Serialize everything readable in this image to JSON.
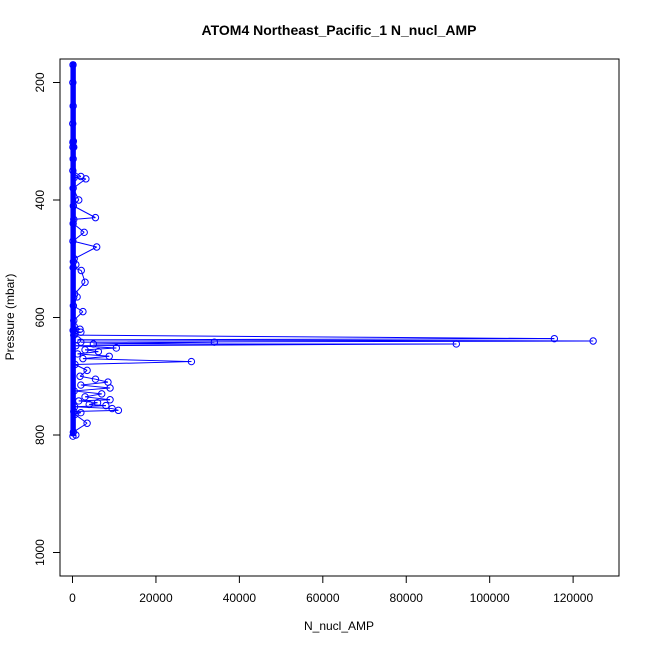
{
  "chart_data": {
    "type": "line",
    "title": "ATOM4 Northeast_Pacific_1 N_nucl_AMP",
    "xlabel": "N_nucl_AMP",
    "ylabel": "Pressure (mbar)",
    "xlim": [
      -3000,
      131000
    ],
    "ylim": [
      1040,
      160
    ],
    "y_inverted": true,
    "grid": false,
    "legend": "none",
    "xticks": [
      0,
      20000,
      40000,
      60000,
      80000,
      100000,
      120000
    ],
    "xtick_labels": [
      "0",
      "20000",
      "40000",
      "60000",
      "80000",
      "100000",
      "120000"
    ],
    "yticks": [
      200,
      400,
      600,
      800,
      1000
    ],
    "ytick_labels": [
      "200",
      "400",
      "600",
      "800",
      "1000"
    ],
    "series_color": "#0000ff",
    "series": [
      {
        "x": [
          120,
          80,
          150,
          60,
          200,
          100,
          90,
          300,
          150,
          80,
          2000,
          400,
          3200,
          150,
          1500,
          200,
          5500,
          300,
          150,
          2800,
          100,
          5800,
          400,
          200,
          800,
          150,
          2100,
          3000,
          500,
          1100,
          200,
          2500,
          300,
          400,
          1800,
          150,
          2000,
          500,
          300,
          115500,
          1200,
          124800,
          2000,
          34000,
          5000,
          92000,
          800,
          10500,
          3000,
          6200,
          1200,
          8800,
          2500,
          28500,
          600,
          3500,
          1800,
          5500,
          8500,
          2000,
          9000,
          400,
          7000,
          3000,
          9000,
          1500,
          6000,
          4000,
          8000,
          500,
          9500,
          11000,
          300,
          2000,
          600,
          3500,
          200,
          800,
          100
        ],
        "y": [
          170,
          200,
          240,
          270,
          300,
          302,
          310,
          310,
          330,
          350,
          360,
          362,
          364,
          380,
          400,
          410,
          430,
          433,
          440,
          455,
          470,
          480,
          500,
          505,
          510,
          515,
          520,
          540,
          560,
          565,
          580,
          590,
          605,
          615,
          620,
          622,
          625,
          628,
          630,
          636,
          638,
          640,
          642,
          642,
          645,
          645,
          648,
          652,
          655,
          658,
          662,
          666,
          670,
          675,
          680,
          690,
          700,
          705,
          710,
          715,
          720,
          725,
          730,
          735,
          740,
          742,
          745,
          748,
          750,
          752,
          755,
          758,
          760,
          762,
          765,
          780,
          795,
          800,
          802
        ]
      }
    ]
  }
}
